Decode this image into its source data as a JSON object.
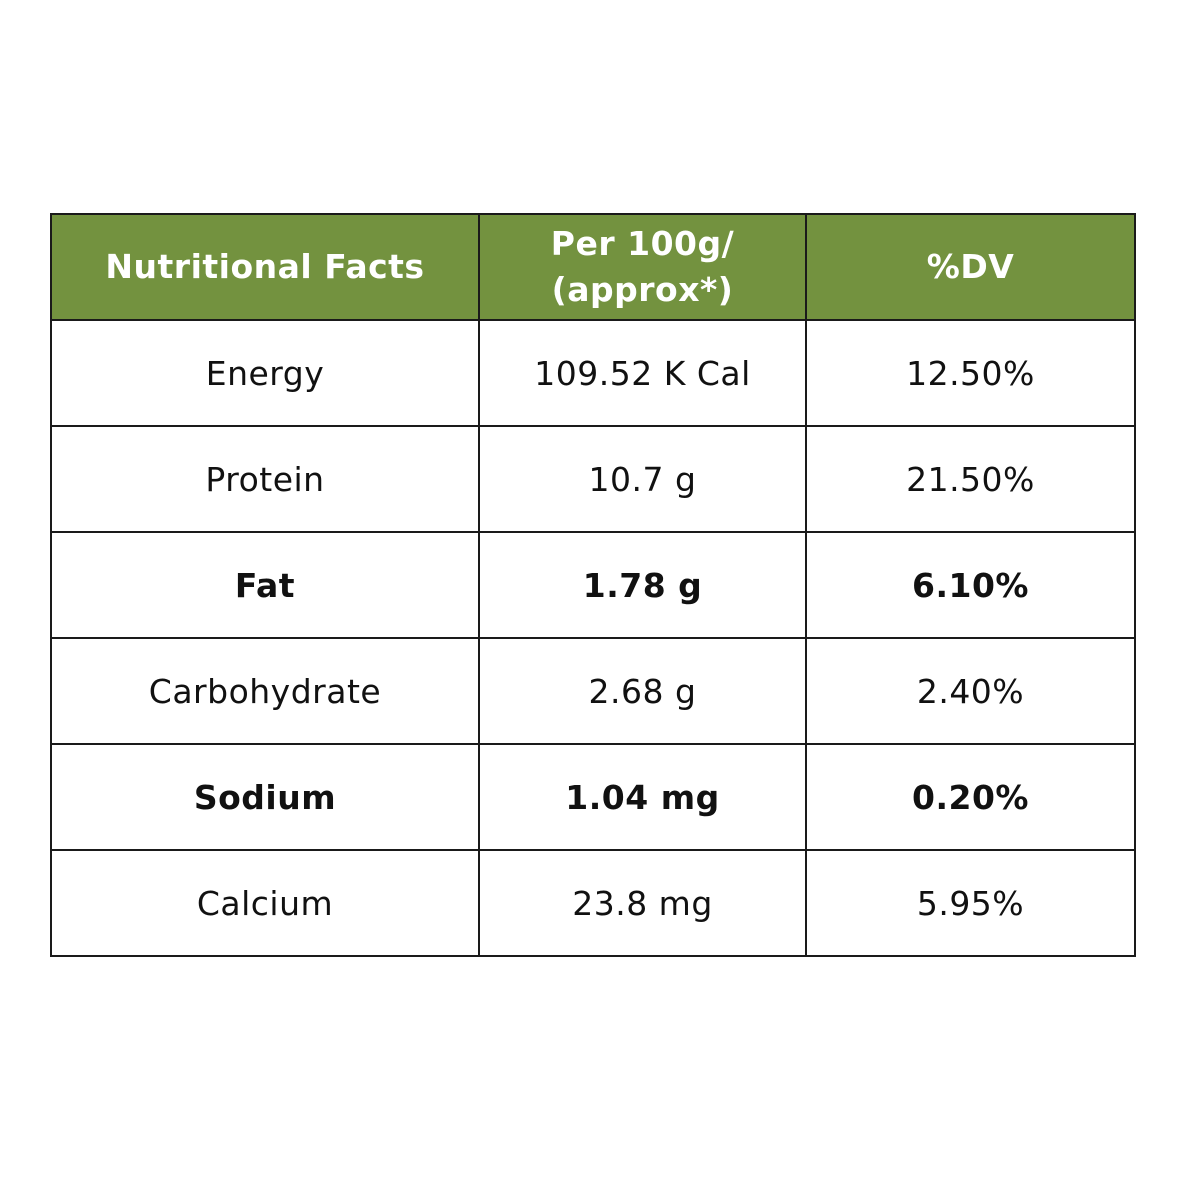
{
  "table": {
    "header": {
      "nutrient": "Nutritional Facts",
      "per100_line1": "Per 100g/",
      "per100_line2": "(approx*)",
      "dv": "%DV"
    },
    "rows": [
      {
        "nutrient": "Energy",
        "per100": "109.52 K Cal",
        "dv": "12.50%",
        "bold": false
      },
      {
        "nutrient": "Protein",
        "per100": "10.7 g",
        "dv": "21.50%",
        "bold": false
      },
      {
        "nutrient": "Fat",
        "per100": "1.78 g",
        "dv": "6.10%",
        "bold": true
      },
      {
        "nutrient": "Carbohydrate",
        "per100": "2.68 g",
        "dv": "2.40%",
        "bold": false
      },
      {
        "nutrient": "Sodium",
        "per100": "1.04 mg",
        "dv": "0.20%",
        "bold": true
      },
      {
        "nutrient": "Calcium",
        "per100": "23.8 mg",
        "dv": "5.95%",
        "bold": false
      }
    ]
  },
  "colors": {
    "header_background": "#73923f",
    "header_text": "#ffffff",
    "border": "#1a1a1a",
    "body_text": "#111111"
  }
}
